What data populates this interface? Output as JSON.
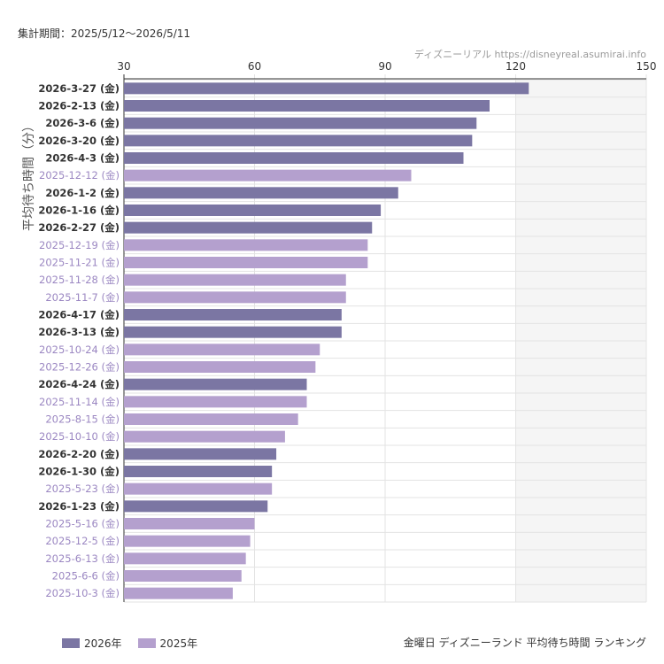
{
  "period_label": "集計期間：2025/5/12〜2026/5/11",
  "credit": "ディズニーリアル  https://disneyreal.asumirai.info",
  "footnote": "金曜日 ディズニーランド 平均待ち時間 ランキング",
  "colors": {
    "2026": "#7b76a3",
    "2025": "#b4a0ce",
    "label_2026": "#333333",
    "label_2025": "#9b87c2",
    "bg_right": "#f5f5f5",
    "grid": "#e3e3e3"
  },
  "chart_data": {
    "type": "bar",
    "orientation": "horizontal",
    "title": "",
    "ylabel": "平均待ち時間（分）",
    "xlim": [
      30,
      150
    ],
    "xticks": [
      30,
      60,
      90,
      120,
      150
    ],
    "legend": [
      {
        "name": "2026年",
        "year": "2026"
      },
      {
        "name": "2025年",
        "year": "2025"
      }
    ],
    "legend_position": "bottom-left",
    "bars": [
      {
        "label": "2026-3-27 (金)",
        "value": 123,
        "year": "2026"
      },
      {
        "label": "2026-2-13 (金)",
        "value": 114,
        "year": "2026"
      },
      {
        "label": "2026-3-6 (金)",
        "value": 111,
        "year": "2026"
      },
      {
        "label": "2026-3-20 (金)",
        "value": 110,
        "year": "2026"
      },
      {
        "label": "2026-4-3 (金)",
        "value": 108,
        "year": "2026"
      },
      {
        "label": "2025-12-12 (金)",
        "value": 96,
        "year": "2025"
      },
      {
        "label": "2026-1-2 (金)",
        "value": 93,
        "year": "2026"
      },
      {
        "label": "2026-1-16 (金)",
        "value": 89,
        "year": "2026"
      },
      {
        "label": "2026-2-27 (金)",
        "value": 87,
        "year": "2026"
      },
      {
        "label": "2025-12-19 (金)",
        "value": 86,
        "year": "2025"
      },
      {
        "label": "2025-11-21 (金)",
        "value": 86,
        "year": "2025"
      },
      {
        "label": "2025-11-28 (金)",
        "value": 81,
        "year": "2025"
      },
      {
        "label": "2025-11-7 (金)",
        "value": 81,
        "year": "2025"
      },
      {
        "label": "2026-4-17 (金)",
        "value": 80,
        "year": "2026"
      },
      {
        "label": "2026-3-13 (金)",
        "value": 80,
        "year": "2026"
      },
      {
        "label": "2025-10-24 (金)",
        "value": 75,
        "year": "2025"
      },
      {
        "label": "2025-12-26 (金)",
        "value": 74,
        "year": "2025"
      },
      {
        "label": "2026-4-24 (金)",
        "value": 72,
        "year": "2026"
      },
      {
        "label": "2025-11-14 (金)",
        "value": 72,
        "year": "2025"
      },
      {
        "label": "2025-8-15 (金)",
        "value": 70,
        "year": "2025"
      },
      {
        "label": "2025-10-10 (金)",
        "value": 67,
        "year": "2025"
      },
      {
        "label": "2026-2-20 (金)",
        "value": 65,
        "year": "2026"
      },
      {
        "label": "2026-1-30 (金)",
        "value": 64,
        "year": "2026"
      },
      {
        "label": "2025-5-23 (金)",
        "value": 64,
        "year": "2025"
      },
      {
        "label": "2026-1-23 (金)",
        "value": 63,
        "year": "2026"
      },
      {
        "label": "2025-5-16 (金)",
        "value": 60,
        "year": "2025"
      },
      {
        "label": "2025-12-5 (金)",
        "value": 59,
        "year": "2025"
      },
      {
        "label": "2025-6-13 (金)",
        "value": 58,
        "year": "2025"
      },
      {
        "label": "2025-6-6 (金)",
        "value": 57,
        "year": "2025"
      },
      {
        "label": "2025-10-3 (金)",
        "value": 55,
        "year": "2025"
      }
    ]
  }
}
